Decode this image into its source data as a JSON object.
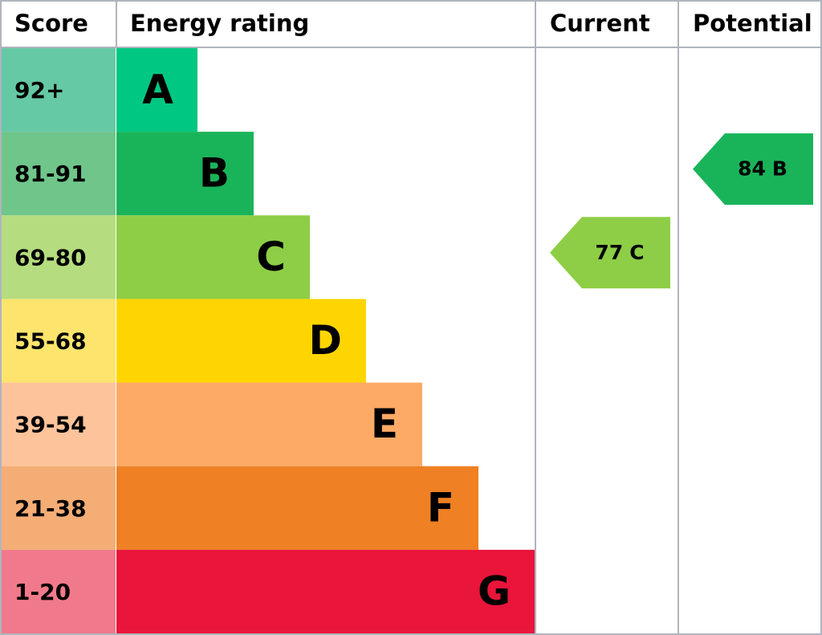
{
  "header": {
    "score": "Score",
    "rating": "Energy rating",
    "current": "Current",
    "potential": "Potential"
  },
  "rows": [
    {
      "score": "92+",
      "band": "A",
      "score_color": "#65c9a5",
      "bar_color": "#00c781"
    },
    {
      "score": "81-91",
      "band": "B",
      "score_color": "#6fc58a",
      "bar_color": "#19b459"
    },
    {
      "score": "69-80",
      "band": "C",
      "score_color": "#b5dc7f",
      "bar_color": "#8dce46"
    },
    {
      "score": "55-68",
      "band": "D",
      "score_color": "#fde46d",
      "bar_color": "#ffd500"
    },
    {
      "score": "39-54",
      "band": "E",
      "score_color": "#fdc39b",
      "bar_color": "#fcaa65"
    },
    {
      "score": "21-38",
      "band": "F",
      "score_color": "#f4ad75",
      "bar_color": "#ef8023"
    },
    {
      "score": "1-20",
      "band": "G",
      "score_color": "#f07a8b",
      "bar_color": "#e9153b"
    }
  ],
  "current": {
    "score": 77,
    "band": "C"
  },
  "potential": {
    "score": 84,
    "band": "B"
  }
}
